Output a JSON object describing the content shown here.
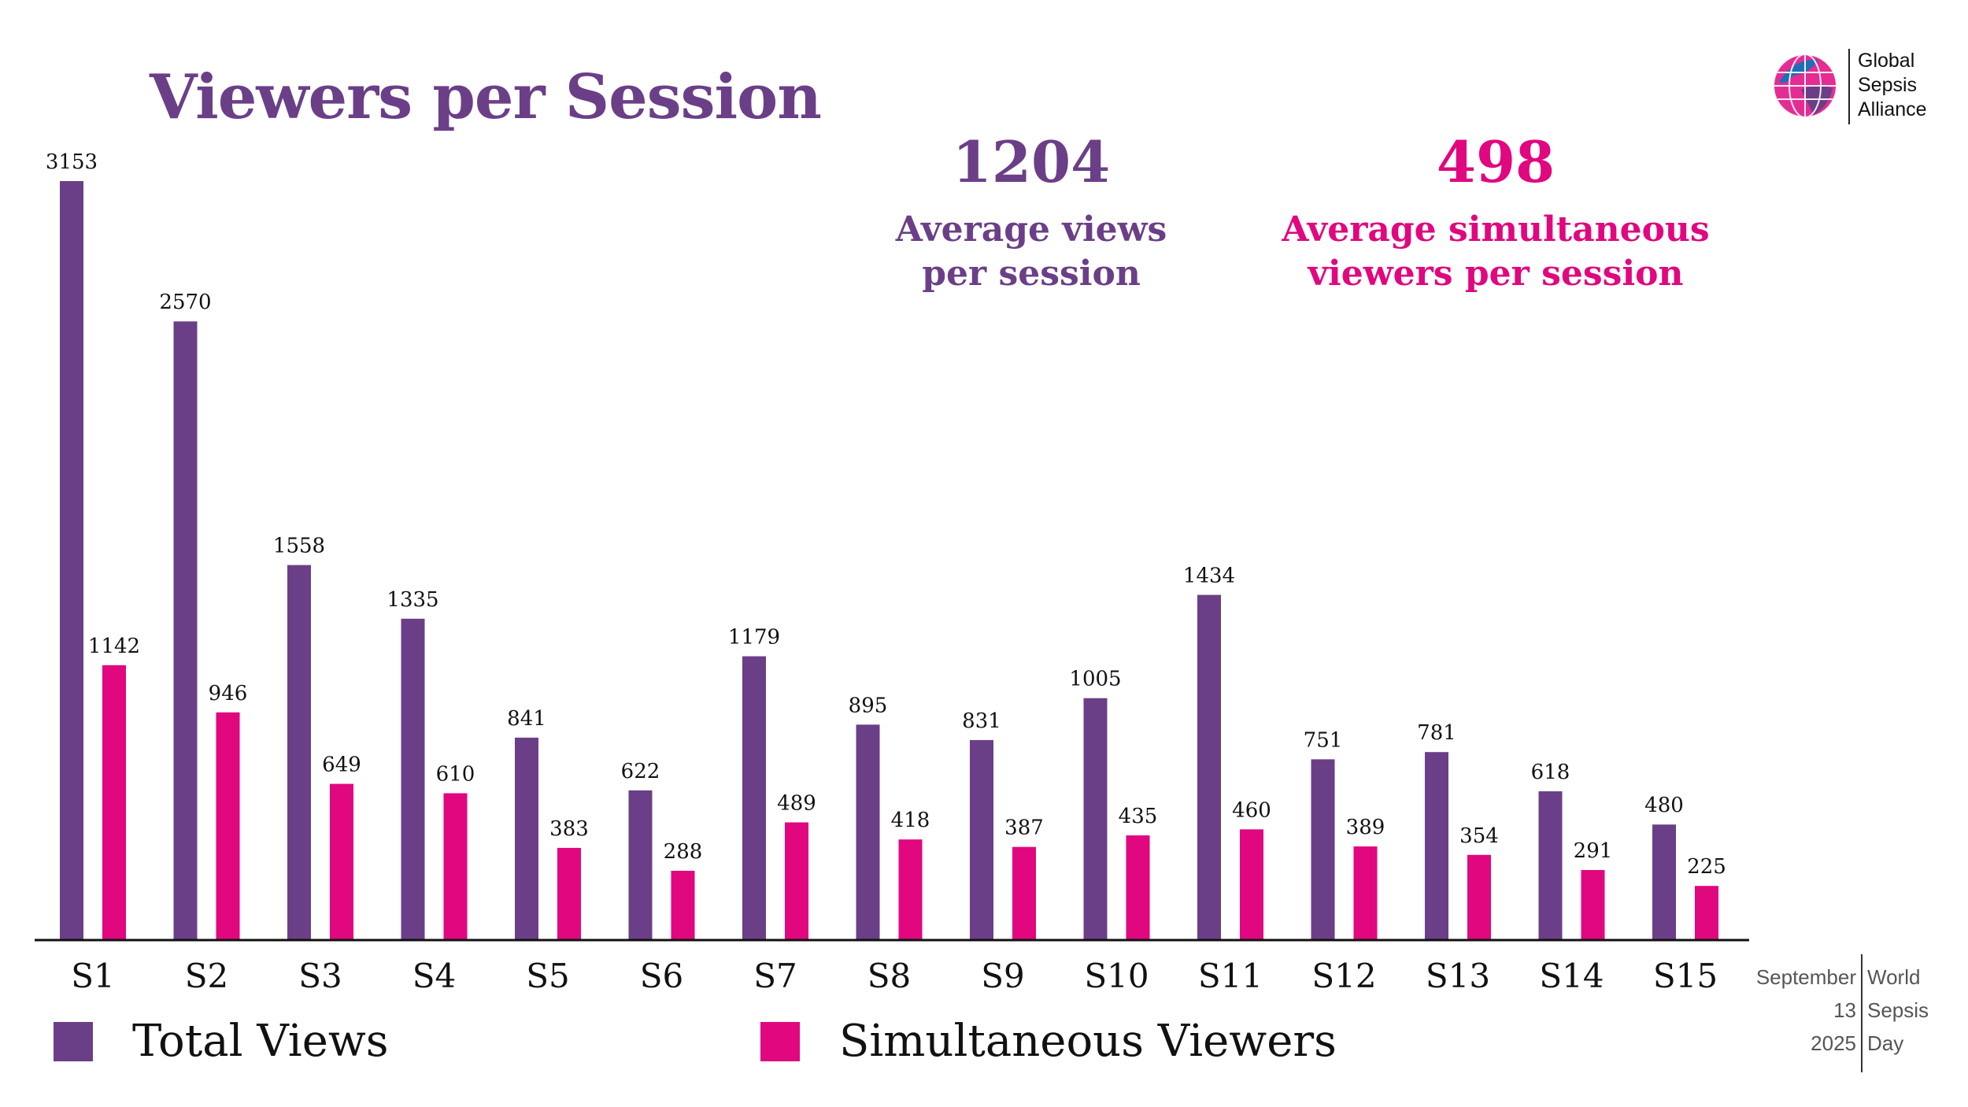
{
  "page": {
    "title": "Viewers per Session",
    "stats": [
      {
        "value": "1204",
        "label": "Average views\nper session",
        "color": "#6b3f87"
      },
      {
        "value": "498",
        "label": "Average simultaneous\nviewers per session",
        "color": "#e0077f"
      }
    ],
    "logo": {
      "name": "Global\nSepsis\nAlliance"
    },
    "badge": {
      "left": "September\n13\n2025",
      "right": "World\nSepsis\nDay"
    }
  },
  "colors": {
    "total": "#6b3f87",
    "simultaneous": "#e0077f"
  },
  "chart_data": {
    "type": "bar",
    "title": "Viewers per Session",
    "categories": [
      "S1",
      "S2",
      "S3",
      "S4",
      "S5",
      "S6",
      "S7",
      "S8",
      "S9",
      "S10",
      "S11",
      "S12",
      "S13",
      "S14",
      "S15"
    ],
    "series": [
      {
        "name": "Total Views",
        "values": [
          3153,
          2570,
          1558,
          1335,
          841,
          622,
          1179,
          895,
          831,
          1005,
          1434,
          751,
          781,
          618,
          480
        ]
      },
      {
        "name": "Simultaneous Viewers",
        "values": [
          1142,
          946,
          649,
          610,
          383,
          288,
          489,
          418,
          387,
          435,
          460,
          389,
          354,
          291,
          225
        ]
      }
    ],
    "xlabel": "",
    "ylabel": "",
    "ylim": [
      0,
      3153
    ],
    "grid": false,
    "legend": "bottom"
  }
}
